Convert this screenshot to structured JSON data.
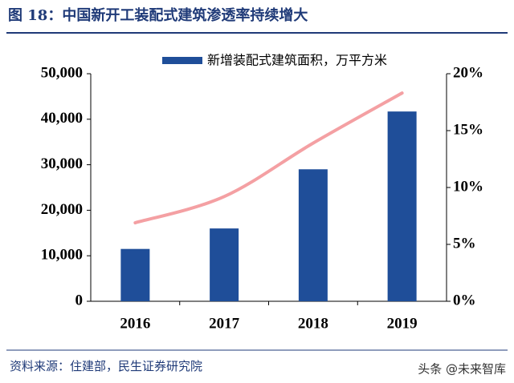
{
  "chart_data": {
    "type": "bar-line",
    "title": "图 18：中国新开工装配式建筑渗透率持续增大",
    "source": "资料来源：住建部，民生证券研究院",
    "watermark": "头条 @未来智库",
    "categories": [
      "2016",
      "2017",
      "2018",
      "2019"
    ],
    "series": [
      {
        "name": "新增装配式建筑面积，万平方米",
        "type": "bar",
        "color": "#1f4e99",
        "values": [
          11500,
          16000,
          29000,
          41700
        ]
      },
      {
        "type": "line",
        "axis": "y2",
        "color": "#f4a0a3",
        "values": [
          6.9,
          9.2,
          13.9,
          18.3
        ]
      }
    ],
    "ylim": [
      0,
      50000
    ],
    "yticks": [
      0,
      {
        "value": 10000,
        "label": "10,000"
      },
      {
        "value": 20000,
        "label": "20,000"
      },
      {
        "value": 30000,
        "label": "30,000"
      },
      {
        "value": 40000,
        "label": "40,000"
      },
      {
        "value": 50000,
        "label": "50,000"
      }
    ],
    "y2lim": [
      0,
      20
    ],
    "y2ticks": [
      {
        "value": 0,
        "label": "0%"
      },
      {
        "value": 5,
        "label": "5%"
      },
      {
        "value": 10,
        "label": "10%"
      },
      {
        "value": 15,
        "label": "15%"
      },
      {
        "value": 20,
        "label": "20%"
      }
    ]
  }
}
